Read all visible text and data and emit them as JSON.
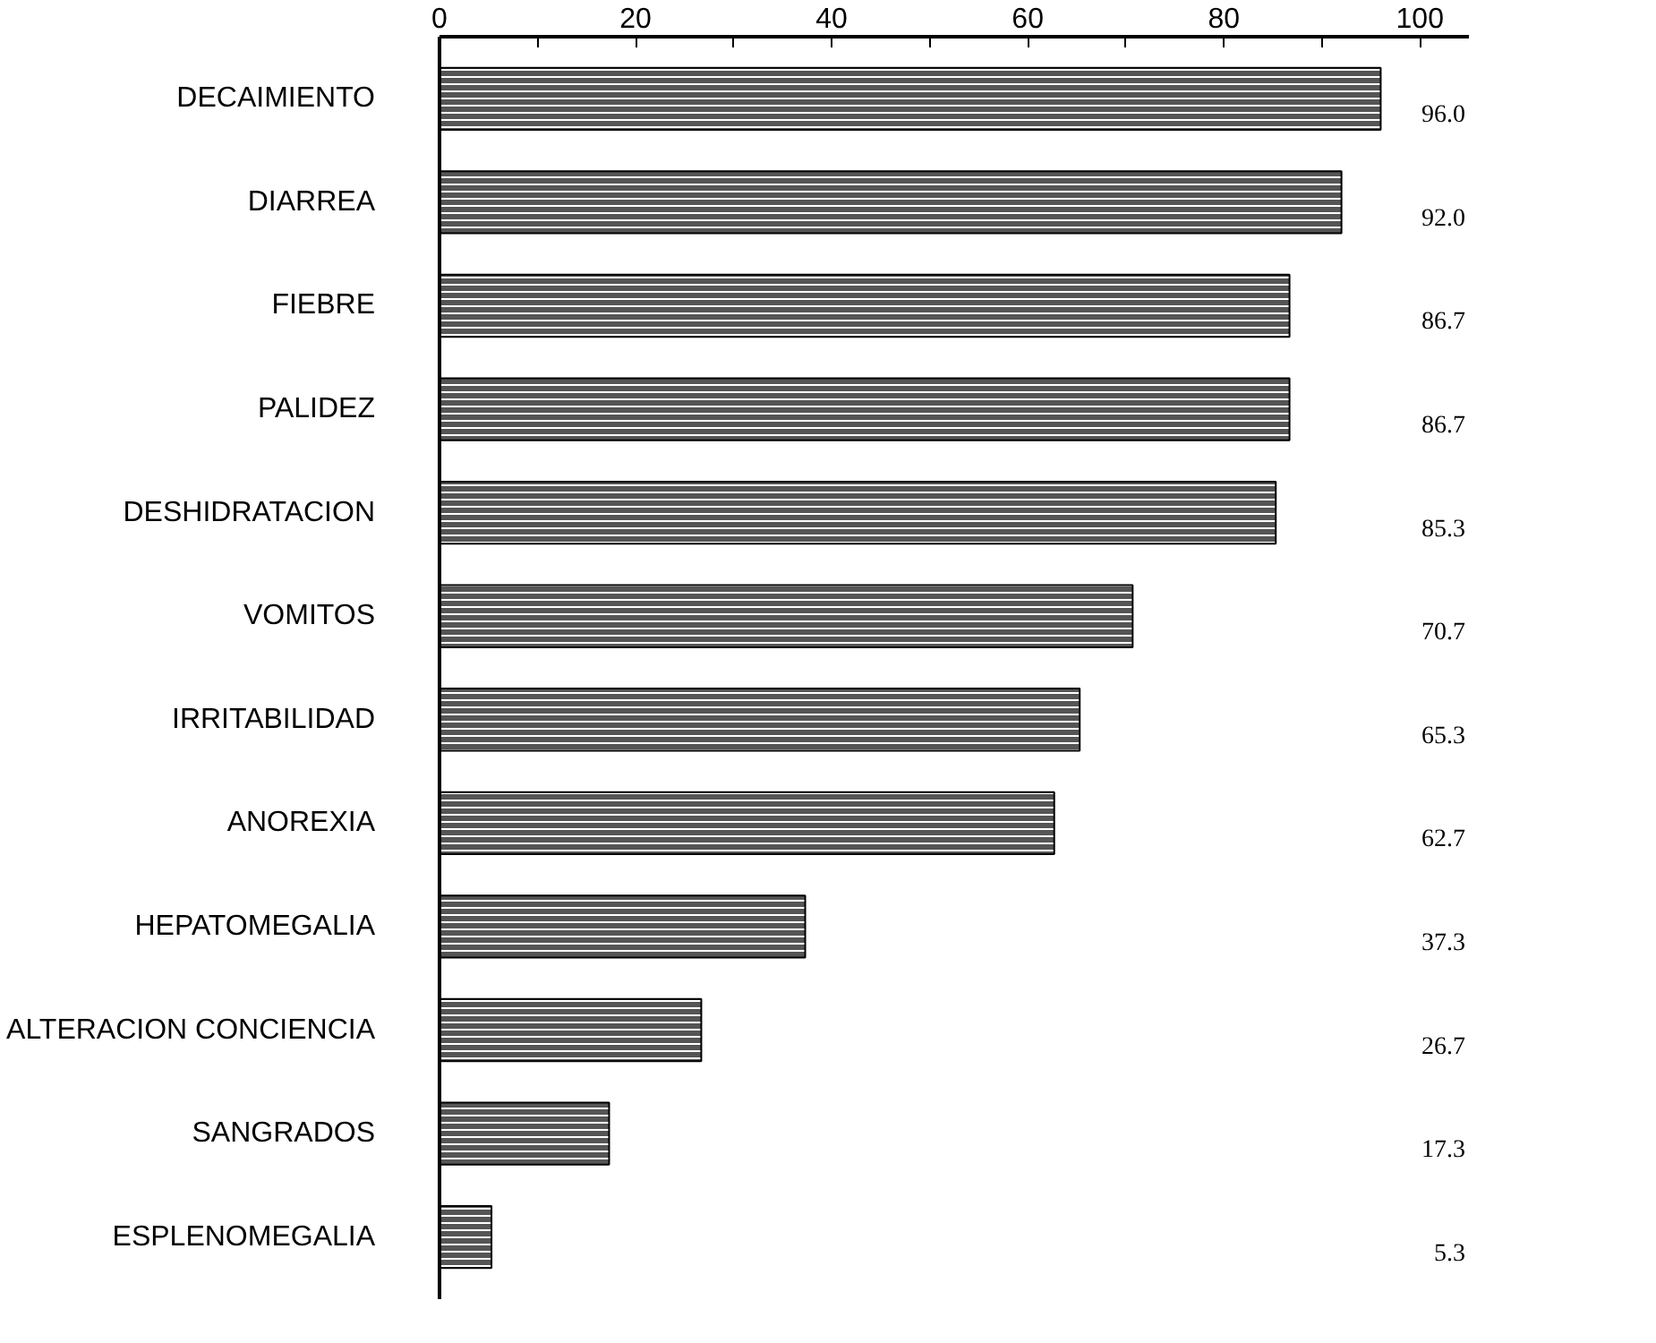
{
  "chart_data": {
    "type": "bar",
    "orientation": "horizontal",
    "categories": [
      "DECAIMIENTO",
      "DIARREA",
      "FIEBRE",
      "PALIDEZ",
      "DESHIDRATACION",
      "VOMITOS",
      "IRRITABILIDAD",
      "ANOREXIA",
      "HEPATOMEGALIA",
      "ALTERACION CONCIENCIA",
      "SANGRADOS",
      "ESPLENOMEGALIA"
    ],
    "values": [
      96.0,
      92.0,
      86.7,
      86.7,
      85.3,
      70.7,
      65.3,
      62.7,
      37.3,
      26.7,
      17.3,
      5.3
    ],
    "value_labels": [
      "96.0",
      "92.0",
      "86.7",
      "86.7",
      "85.3",
      "70.7",
      "65.3",
      "62.7",
      "37.3",
      "26.7",
      "17.3",
      "5.3"
    ],
    "color": "#555555",
    "xlim": [
      0,
      105
    ],
    "xticks": [
      0,
      {
        "value": 10,
        "label": null
      },
      20,
      {
        "value": 30,
        "label": null
      },
      40,
      {
        "value": 50,
        "label": null
      },
      60,
      {
        "value": 70,
        "label": null
      },
      80,
      {
        "value": 90,
        "label": null
      },
      100
    ],
    "grid": false
  }
}
